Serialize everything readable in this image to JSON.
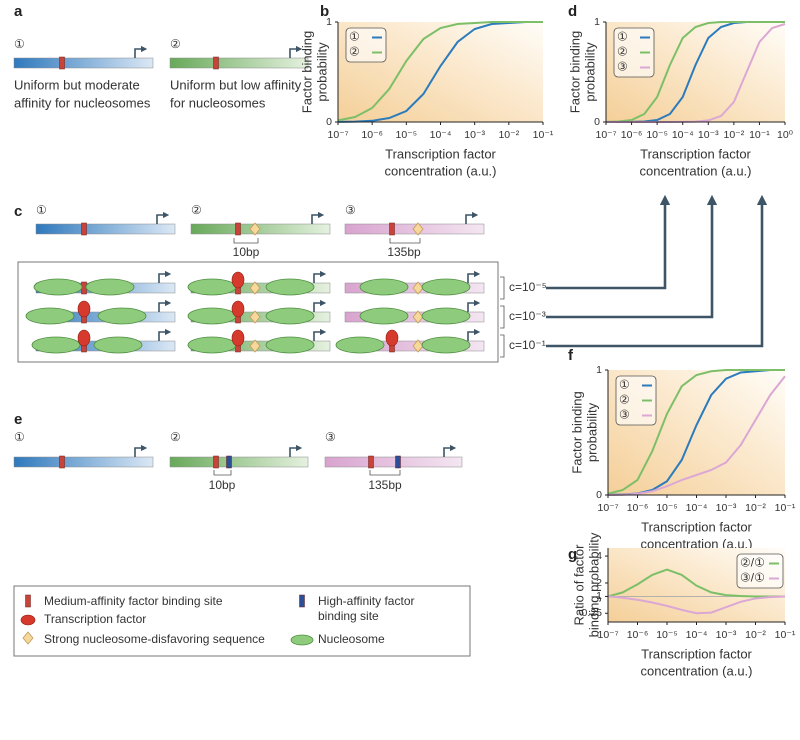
{
  "panels": {
    "a": {
      "label": "a",
      "constructs": [
        {
          "symbol": "①",
          "caption": [
            "Uniform but moderate",
            "affinity for nucleosomes"
          ]
        },
        {
          "symbol": "②",
          "caption": [
            "Uniform but low affinity",
            "for nucleosomes"
          ]
        }
      ]
    },
    "c": {
      "label": "c",
      "symbols": [
        "①",
        "②",
        "③"
      ],
      "spacings": [
        "10bp",
        "135bp"
      ],
      "concentrations": [
        "c=10⁻⁵",
        "c=10⁻³",
        "c=10⁻¹"
      ]
    },
    "e": {
      "label": "e",
      "symbols": [
        "①",
        "②",
        "③"
      ],
      "spacings": [
        "10bp",
        "135bp"
      ]
    }
  },
  "key": [
    [
      "Medium-affinity factor binding site"
    ],
    [
      "Transcription factor"
    ],
    [
      "Strong nucleosome-disfavoring sequence"
    ],
    [
      "High-affinity factor",
      "binding site"
    ],
    [
      "Nucleosome"
    ]
  ],
  "chart_data": [
    {
      "type": "line",
      "panel": "b",
      "log_x": true,
      "legend": "upper left",
      "ylabel": [
        "Factor binding",
        "probability"
      ],
      "xlabel": [
        "Transcription factor",
        "concentration (a.u.)"
      ],
      "x": [
        1e-07,
        3.16e-07,
        1e-06,
        3.16e-06,
        1e-05,
        3.16e-05,
        0.0001,
        0.000316,
        0.001,
        0.00316,
        0.01,
        0.0316,
        0.1
      ],
      "series": [
        {
          "name": "①",
          "color": "#2b7bbd",
          "values": [
            0.001,
            0.004,
            0.012,
            0.04,
            0.11,
            0.28,
            0.56,
            0.8,
            0.93,
            0.98,
            0.99,
            1,
            1
          ]
        },
        {
          "name": "②",
          "color": "#7dbf68",
          "values": [
            0.016,
            0.05,
            0.14,
            0.33,
            0.61,
            0.83,
            0.94,
            0.98,
            0.99,
            1,
            1,
            1,
            1
          ]
        }
      ],
      "xlim": [
        1e-07,
        0.1
      ],
      "xticks": [
        {
          "value": 1e-07,
          "label": "10⁻⁷"
        },
        {
          "value": 1e-06,
          "label": "10⁻⁶"
        },
        {
          "value": 1e-05,
          "label": "10⁻⁵"
        },
        {
          "value": 0.0001,
          "label": "10⁻⁴"
        },
        {
          "value": 0.001,
          "label": "10⁻³"
        },
        {
          "value": 0.01,
          "label": "10⁻²"
        },
        {
          "value": 0.1,
          "label": "10⁻¹"
        }
      ],
      "ylim": [
        0,
        1
      ],
      "yticks": [
        0,
        1
      ]
    },
    {
      "type": "line",
      "panel": "d",
      "log_x": true,
      "legend": "upper left",
      "ylabel": [
        "Factor binding",
        "probability"
      ],
      "xlabel": [
        "Transcription factor",
        "concentration (a.u.)"
      ],
      "x": [
        1e-07,
        3.16e-07,
        1e-06,
        3.16e-06,
        1e-05,
        3.16e-05,
        0.0001,
        0.000316,
        0.001,
        0.00316,
        0.01,
        0.0316,
        0.1,
        0.316,
        1
      ],
      "series": [
        {
          "name": "①",
          "color": "#2b7bbd",
          "values": [
            0,
            0,
            0.001,
            0.005,
            0.02,
            0.08,
            0.25,
            0.57,
            0.84,
            0.95,
            0.99,
            1,
            1,
            1,
            1
          ]
        },
        {
          "name": "②",
          "color": "#7dbf68",
          "values": [
            0.001,
            0.005,
            0.02,
            0.08,
            0.25,
            0.57,
            0.84,
            0.95,
            0.99,
            1,
            1,
            1,
            1,
            1,
            1
          ]
        },
        {
          "name": "③",
          "color": "#dba7d4",
          "values": [
            0,
            0,
            0,
            0,
            0,
            0,
            0.001,
            0.004,
            0.016,
            0.06,
            0.2,
            0.5,
            0.8,
            0.94,
            0.98
          ]
        }
      ],
      "xlim": [
        1e-07,
        1
      ],
      "xticks": [
        {
          "value": 1e-07,
          "label": "10⁻⁷"
        },
        {
          "value": 1e-06,
          "label": "10⁻⁶"
        },
        {
          "value": 1e-05,
          "label": "10⁻⁵"
        },
        {
          "value": 0.0001,
          "label": "10⁻⁴"
        },
        {
          "value": 0.001,
          "label": "10⁻³"
        },
        {
          "value": 0.01,
          "label": "10⁻²"
        },
        {
          "value": 0.1,
          "label": "10⁻¹"
        },
        {
          "value": 1,
          "label": "10⁰"
        }
      ],
      "ylim": [
        0,
        1
      ],
      "yticks": [
        0,
        1
      ]
    },
    {
      "type": "line",
      "panel": "f",
      "log_x": true,
      "legend": "upper left",
      "ylabel": [
        "Factor binding",
        "probability"
      ],
      "xlabel": [
        "Transcription factor",
        "concentration (a.u.)"
      ],
      "x": [
        1e-07,
        3.16e-07,
        1e-06,
        3.16e-06,
        1e-05,
        3.16e-05,
        0.0001,
        0.000316,
        0.001,
        0.00316,
        0.01,
        0.0316,
        0.1
      ],
      "series": [
        {
          "name": "①",
          "color": "#2b7bbd",
          "values": [
            0.001,
            0.004,
            0.012,
            0.04,
            0.11,
            0.28,
            0.56,
            0.8,
            0.93,
            0.98,
            0.99,
            1,
            1
          ]
        },
        {
          "name": "②",
          "color": "#7dbf68",
          "values": [
            0.01,
            0.04,
            0.12,
            0.35,
            0.65,
            0.87,
            0.96,
            0.99,
            1,
            1,
            1,
            1,
            1
          ]
        },
        {
          "name": "③",
          "color": "#dba7d4",
          "values": [
            0,
            0.002,
            0.01,
            0.03,
            0.07,
            0.12,
            0.16,
            0.2,
            0.26,
            0.4,
            0.6,
            0.8,
            0.95
          ]
        }
      ],
      "xlim": [
        1e-07,
        0.1
      ],
      "xticks": [
        {
          "value": 1e-07,
          "label": "10⁻⁷"
        },
        {
          "value": 1e-06,
          "label": "10⁻⁶"
        },
        {
          "value": 1e-05,
          "label": "10⁻⁵"
        },
        {
          "value": 0.0001,
          "label": "10⁻⁴"
        },
        {
          "value": 0.001,
          "label": "10⁻³"
        },
        {
          "value": 0.01,
          "label": "10⁻²"
        },
        {
          "value": 0.1,
          "label": "10⁻¹"
        }
      ],
      "ylim": [
        0,
        1
      ],
      "yticks": [
        0,
        1
      ]
    },
    {
      "type": "line",
      "panel": "g",
      "log_x": true,
      "legend": "upper right",
      "ylabel": [
        "Ratio of factor",
        "binding probability"
      ],
      "xlabel": [
        "Transcription factor",
        "concentration (a.u.)"
      ],
      "x": [
        1e-07,
        3.16e-07,
        1e-06,
        3.16e-06,
        1e-05,
        3.16e-05,
        0.0001,
        0.000316,
        0.001,
        0.00316,
        0.01,
        0.0316,
        0.1
      ],
      "series": [
        {
          "name": "②/①",
          "color": "#7dbf68",
          "values": [
            1,
            1.3,
            1.9,
            2.6,
            3,
            2.6,
            1.8,
            1.3,
            1.1,
            1.03,
            1,
            1,
            1
          ]
        },
        {
          "name": "③/①",
          "color": "#dba7d4",
          "values": [
            1,
            0.9,
            0.75,
            0.55,
            0.3,
            0,
            -0.25,
            -0.2,
            0.2,
            0.6,
            0.85,
            0.95,
            1
          ]
        }
      ],
      "reference_line": 1,
      "xlim": [
        1e-07,
        0.1
      ],
      "xticks": [
        {
          "value": 1e-07,
          "label": "10⁻⁷"
        },
        {
          "value": 1e-06,
          "label": "10⁻⁶"
        },
        {
          "value": 1e-05,
          "label": "10⁻⁵"
        },
        {
          "value": 0.0001,
          "label": "10⁻⁴"
        },
        {
          "value": 0.001,
          "label": "10⁻³"
        },
        {
          "value": 0.01,
          "label": "10⁻²"
        },
        {
          "value": 0.1,
          "label": "10⁻¹"
        }
      ],
      "ylim": [
        -0.9,
        4.6
      ],
      "yticks": [
        4,
        2,
        1,
        -0.25
      ]
    }
  ]
}
